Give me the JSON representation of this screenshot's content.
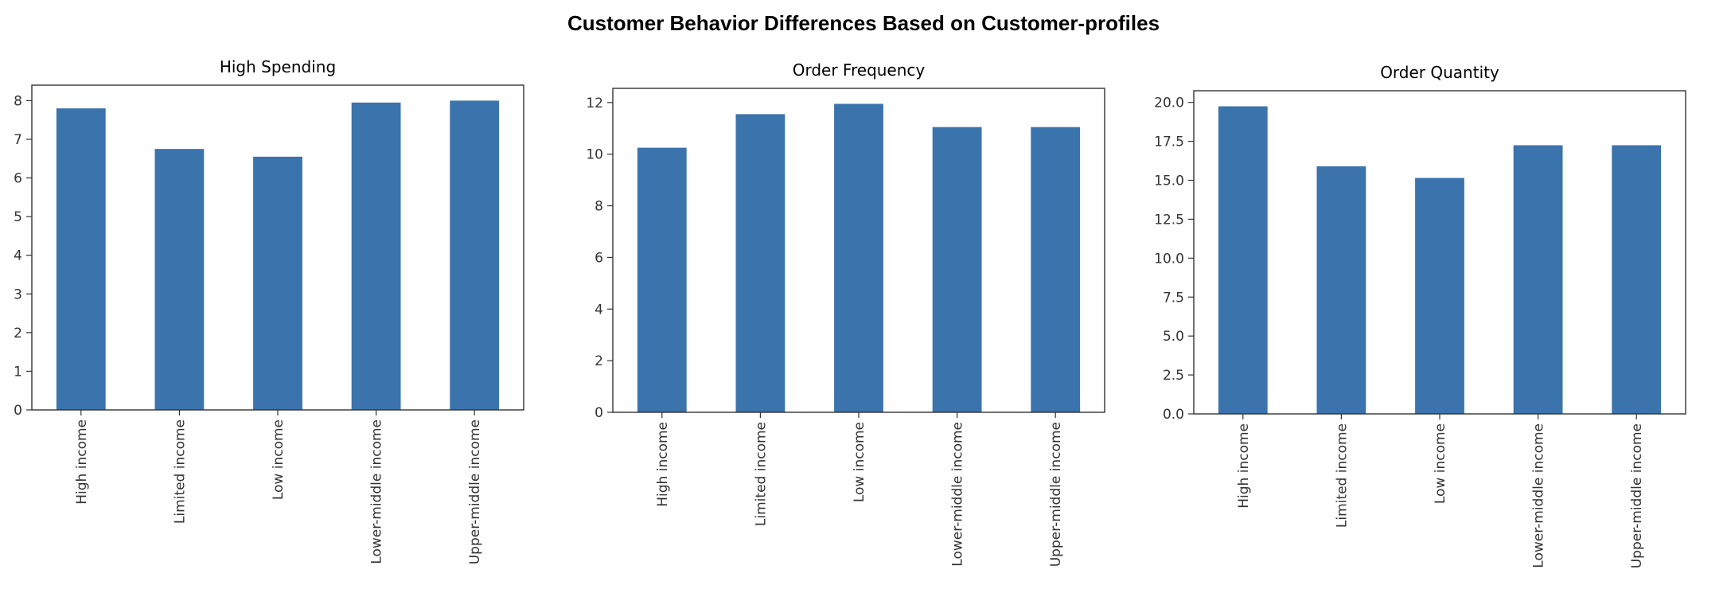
{
  "title": "Customer Behavior Differences Based on Customer-profiles",
  "bar_color": "#3b73ad",
  "chart_data": [
    {
      "type": "bar",
      "title": "High Spending",
      "categories": [
        "High income",
        "Limited income",
        "Low income",
        "Lower-middle income",
        "Upper-middle income"
      ],
      "values": [
        7.8,
        6.75,
        6.55,
        7.95,
        8.0
      ],
      "yticks": [
        "0",
        "1",
        "2",
        "3",
        "4",
        "5",
        "6",
        "7",
        "8"
      ],
      "ylim": [
        0,
        8.4
      ],
      "xlabel": "",
      "ylabel": "",
      "grid": false,
      "legend": "none"
    },
    {
      "type": "bar",
      "title": "Order Frequency",
      "categories": [
        "High income",
        "Limited income",
        "Low income",
        "Lower-middle income",
        "Upper-middle income"
      ],
      "values": [
        10.25,
        11.55,
        11.95,
        11.05,
        11.05
      ],
      "yticks": [
        "0",
        "2",
        "4",
        "6",
        "8",
        "10",
        "12"
      ],
      "ylim": [
        0,
        12.55
      ],
      "xlabel": "",
      "ylabel": "",
      "grid": false,
      "legend": "none"
    },
    {
      "type": "bar",
      "title": "Order Quantity",
      "categories": [
        "High income",
        "Limited income",
        "Low income",
        "Lower-middle income",
        "Upper-middle income"
      ],
      "values": [
        19.75,
        15.9,
        15.15,
        17.25,
        17.25
      ],
      "yticks": [
        "0.0",
        "2.5",
        "5.0",
        "7.5",
        "10.0",
        "12.5",
        "15.0",
        "17.5",
        "20.0"
      ],
      "ylim": [
        0,
        20.75
      ],
      "xlabel": "",
      "ylabel": "",
      "grid": false,
      "legend": "none"
    }
  ]
}
